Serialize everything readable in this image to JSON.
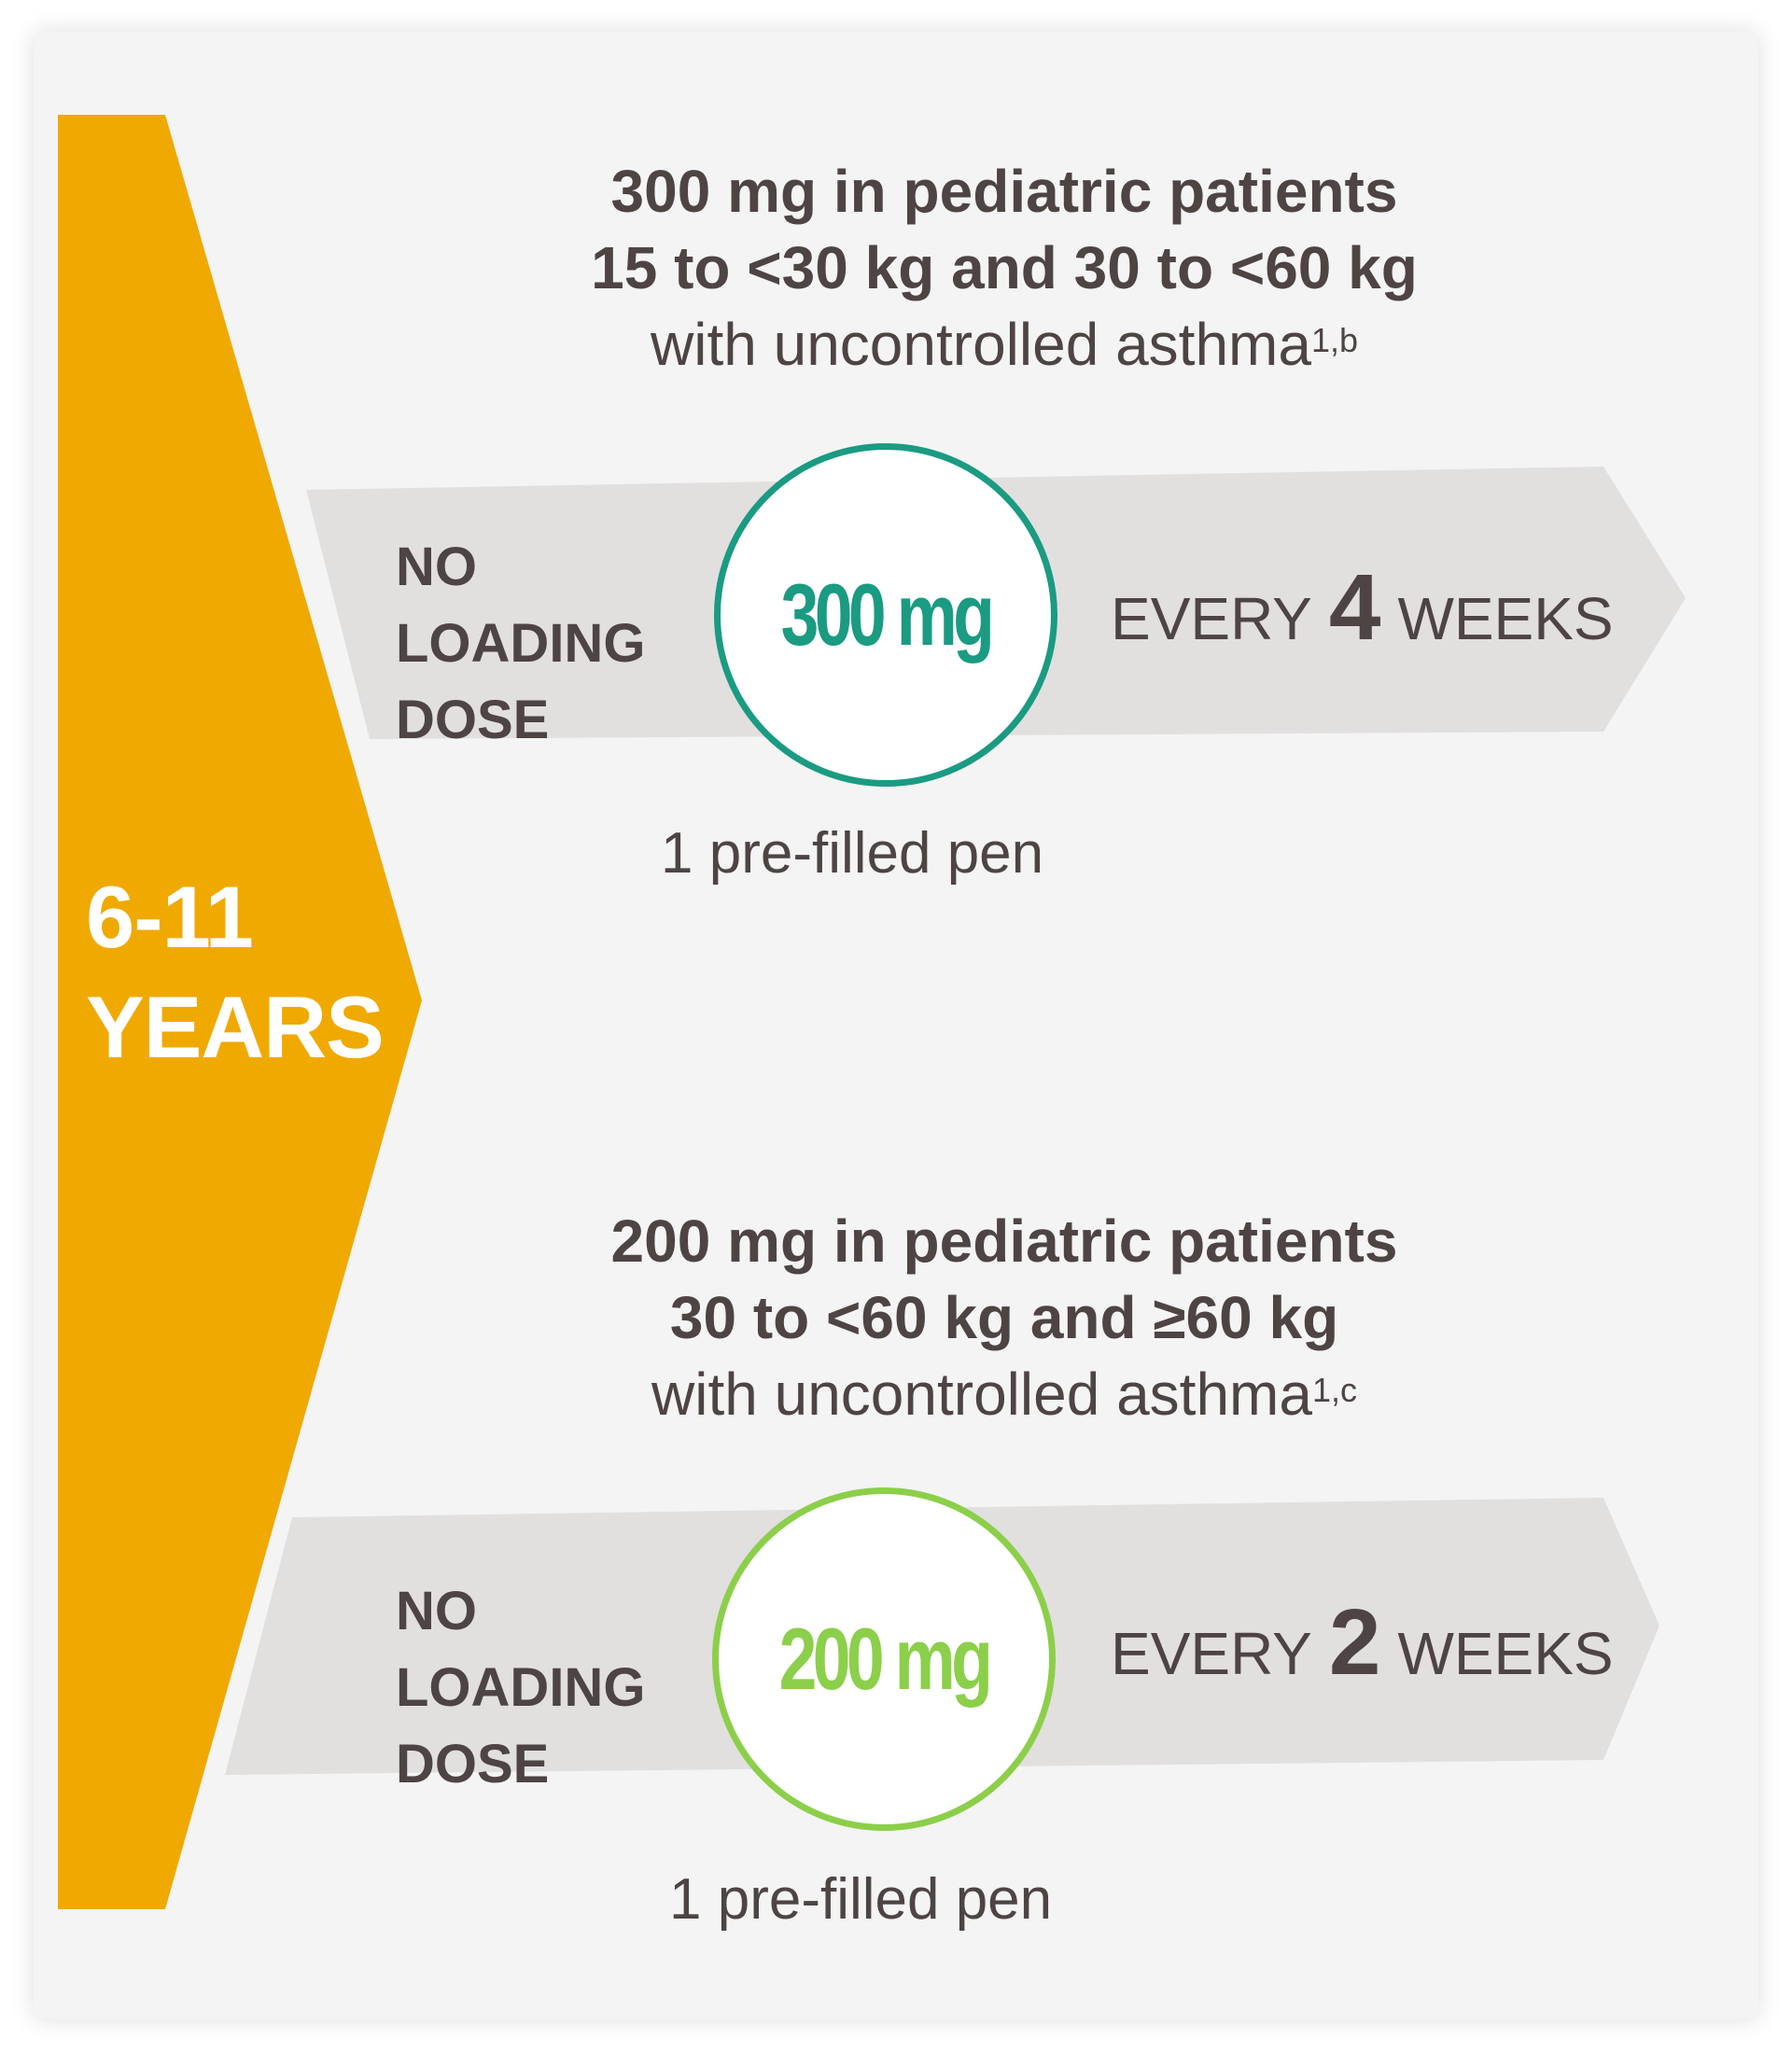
{
  "age_group": {
    "line1": "6-11",
    "line2": "YEARS"
  },
  "colors": {
    "age_tab": "#f0a900",
    "band": "#e2dfdf",
    "card_bg": "#f4f4f4",
    "text": "#4d4443",
    "teal": "#1a9b82",
    "green": "#8ccf4a"
  },
  "regimens": [
    {
      "heading_line1": "300 mg in pediatric patients",
      "heading_line2": "15 to <30 kg and 30 to <60 kg",
      "heading_line3": "with uncontrolled asthma",
      "heading_sup": "1,b",
      "loading": [
        "NO",
        "LOADING",
        "DOSE"
      ],
      "dose_number": "300",
      "dose_unit": "mg",
      "freq_prefix": "EVERY",
      "freq_number": "4",
      "freq_suffix": "WEEKS",
      "pen_label": "1 pre-filled pen"
    },
    {
      "heading_line1": "200 mg in pediatric patients",
      "heading_line2": "30 to <60 kg and ≥60 kg",
      "heading_line3": "with uncontrolled asthma",
      "heading_sup": "1,c",
      "loading": [
        "NO",
        "LOADING",
        "DOSE"
      ],
      "dose_number": "200",
      "dose_unit": "mg",
      "freq_prefix": "EVERY",
      "freq_number": "2",
      "freq_suffix": "WEEKS",
      "pen_label": "1 pre-filled pen"
    }
  ]
}
